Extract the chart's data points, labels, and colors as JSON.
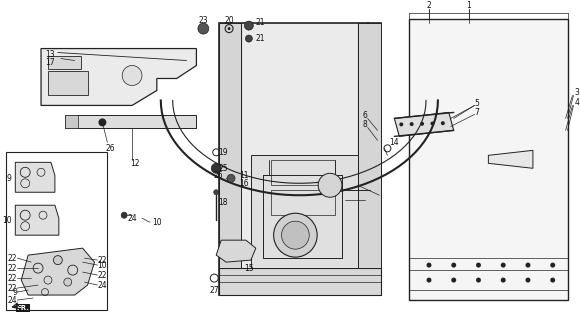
{
  "bg_color": "#ffffff",
  "line_color": "#222222",
  "figsize": [
    5.8,
    3.2
  ],
  "dpi": 100,
  "label_fs": 5.5
}
